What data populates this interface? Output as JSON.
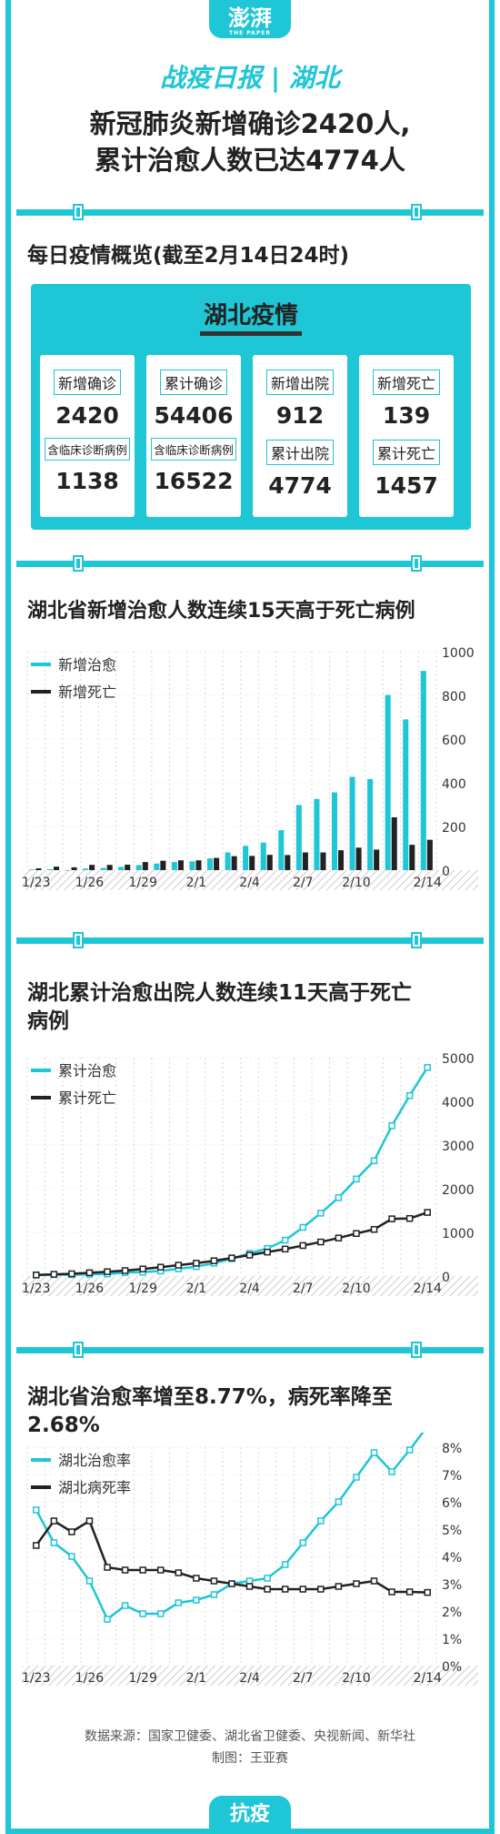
{
  "header": {
    "logo": "澎湃",
    "logo_sub": "THE PAPER",
    "kicker": "战疫日报 | 湖北",
    "headline_line1": "新冠肺炎新增确诊2420人,",
    "headline_line2": "累计治愈人数已达4774人"
  },
  "overview": {
    "title": "每日疫情概览(截至2月14日24时)",
    "panel_title": "湖北疫情",
    "cards": [
      {
        "label1": "新增确诊",
        "value1": "2420",
        "label2": "含临床诊断病例",
        "value2": "1138"
      },
      {
        "label1": "累计确诊",
        "value1": "54406",
        "label2": "含临床诊断病例",
        "value2": "16522"
      },
      {
        "label1": "新增出院",
        "value1": "912",
        "label2": "累计出院",
        "value2": "4774"
      },
      {
        "label1": "新增死亡",
        "value1": "139",
        "label2": "累计死亡",
        "value2": "1457"
      }
    ]
  },
  "chart_data": [
    {
      "type": "bar",
      "title": "湖北省新增治愈人数连续15天高于死亡病例",
      "categories": [
        "1/23",
        "1/24",
        "1/25",
        "1/26",
        "1/27",
        "1/28",
        "1/29",
        "1/30",
        "1/31",
        "2/1",
        "2/2",
        "2/3",
        "2/4",
        "2/5",
        "2/6",
        "2/7",
        "2/8",
        "2/9",
        "2/10",
        "2/11",
        "2/12",
        "2/13",
        "2/14"
      ],
      "x_tick_labels": [
        "1/23",
        "1/26",
        "1/29",
        "2/1",
        "2/4",
        "2/7",
        "2/10",
        "2/14"
      ],
      "ylim": [
        0,
        1000
      ],
      "y_ticks": [
        0,
        200,
        400,
        600,
        800,
        1000
      ],
      "legend_position": "top-left",
      "series": [
        {
          "name": "新增治愈",
          "color": "#1ec6d6",
          "values": [
            3,
            4,
            0,
            7,
            10,
            15,
            23,
            30,
            37,
            40,
            54,
            81,
            111,
            126,
            183,
            298,
            326,
            356,
            427,
            417,
            802,
            690,
            912
          ]
        },
        {
          "name": "新增死亡",
          "color": "#222222",
          "values": [
            8,
            16,
            13,
            24,
            24,
            25,
            37,
            43,
            45,
            45,
            56,
            64,
            65,
            70,
            69,
            81,
            81,
            91,
            103,
            94,
            242,
            116,
            139
          ]
        }
      ]
    },
    {
      "type": "line",
      "title": "湖北累计治愈出院人数连续11天高于死亡病例",
      "categories": [
        "1/23",
        "1/24",
        "1/25",
        "1/26",
        "1/27",
        "1/28",
        "1/29",
        "1/30",
        "1/31",
        "2/1",
        "2/2",
        "2/3",
        "2/4",
        "2/5",
        "2/6",
        "2/7",
        "2/8",
        "2/9",
        "2/10",
        "2/11",
        "2/12",
        "2/13",
        "2/14"
      ],
      "x_tick_labels": [
        "1/23",
        "1/26",
        "1/29",
        "2/1",
        "2/4",
        "2/7",
        "2/10",
        "2/14"
      ],
      "ylim": [
        0,
        5000
      ],
      "y_ticks": [
        0,
        1000,
        2000,
        3000,
        4000,
        5000
      ],
      "legend_position": "top-left",
      "series": [
        {
          "name": "累计治愈",
          "color": "#1ec6d6",
          "values": [
            28,
            32,
            32,
            42,
            47,
            80,
            90,
            116,
            166,
            215,
            295,
            396,
            520,
            633,
            821,
            1115,
            1439,
            1795,
            2222,
            2639,
            3441,
            4131,
            4774
          ]
        },
        {
          "name": "累计死亡",
          "color": "#222222",
          "values": [
            24,
            40,
            52,
            76,
            100,
            125,
            162,
            204,
            249,
            294,
            350,
            414,
            479,
            549,
            618,
            699,
            780,
            871,
            974,
            1068,
            1310,
            1318,
            1457
          ]
        }
      ]
    },
    {
      "type": "line",
      "title": "湖北省治愈率增至8.77%，病死率降至2.68%",
      "categories": [
        "1/23",
        "1/24",
        "1/25",
        "1/26",
        "1/27",
        "1/28",
        "1/29",
        "1/30",
        "1/31",
        "2/1",
        "2/2",
        "2/3",
        "2/4",
        "2/5",
        "2/6",
        "2/7",
        "2/8",
        "2/9",
        "2/10",
        "2/11",
        "2/12",
        "2/13",
        "2/14"
      ],
      "x_tick_labels": [
        "1/23",
        "1/26",
        "1/29",
        "2/1",
        "2/4",
        "2/7",
        "2/10",
        "2/14"
      ],
      "ylim": [
        0,
        8
      ],
      "y_ticks": [
        0,
        1,
        2,
        3,
        4,
        5,
        6,
        7,
        8
      ],
      "y_tick_suffix": "%",
      "legend_position": "top-left",
      "series": [
        {
          "name": "湖北治愈率",
          "color": "#1ec6d6",
          "values": [
            5.7,
            4.5,
            4.0,
            3.1,
            1.7,
            2.2,
            1.9,
            1.9,
            2.3,
            2.4,
            2.6,
            3.0,
            3.1,
            3.2,
            3.7,
            4.5,
            5.3,
            6.0,
            6.9,
            7.8,
            7.1,
            7.9,
            8.77
          ]
        },
        {
          "name": "湖北病死率",
          "color": "#222222",
          "values": [
            4.4,
            5.3,
            4.9,
            5.3,
            3.6,
            3.5,
            3.5,
            3.5,
            3.4,
            3.2,
            3.1,
            3.0,
            2.9,
            2.8,
            2.8,
            2.8,
            2.8,
            2.9,
            3.0,
            3.1,
            2.7,
            2.7,
            2.68
          ]
        }
      ]
    }
  ],
  "footer": {
    "source": "数据来源：国家卫健委、湖北省卫健委、央视新闻、新华社",
    "credit": "制图：王亚赛"
  },
  "bottom_tab": "抗疫"
}
